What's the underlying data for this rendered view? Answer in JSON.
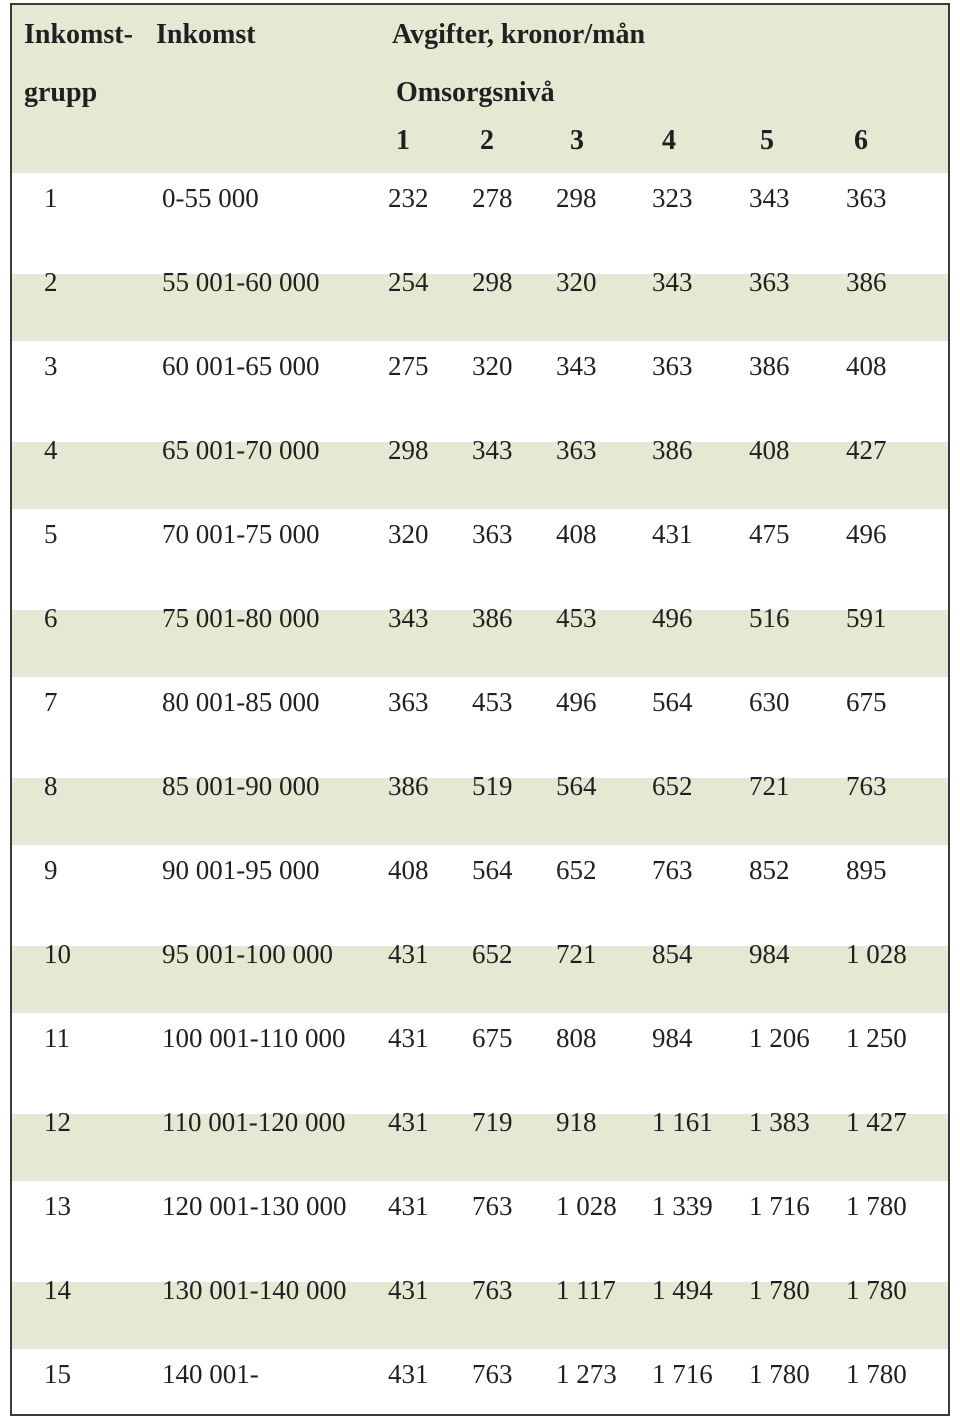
{
  "header": {
    "group_line1": "Inkomst-",
    "group_line2": "grupp",
    "income": "Inkomst",
    "fees": "Avgifter, kronor/mån",
    "care_level": "Omsorgsnivå",
    "levels": [
      "1",
      "2",
      "3",
      "4",
      "5",
      "6"
    ]
  },
  "rows": [
    {
      "group": "1",
      "income": "0-55 000",
      "fees": [
        "232",
        "278",
        "298",
        "323",
        "343",
        "363"
      ]
    },
    {
      "group": "2",
      "income": "55 001-60 000",
      "fees": [
        "254",
        "298",
        "320",
        "343",
        "363",
        "386"
      ]
    },
    {
      "group": "3",
      "income": "60 001-65 000",
      "fees": [
        "275",
        "320",
        "343",
        "363",
        "386",
        "408"
      ]
    },
    {
      "group": "4",
      "income": "65 001-70 000",
      "fees": [
        "298",
        "343",
        "363",
        "386",
        "408",
        "427"
      ]
    },
    {
      "group": "5",
      "income": "70 001-75 000",
      "fees": [
        "320",
        "363",
        "408",
        "431",
        "475",
        "496"
      ]
    },
    {
      "group": "6",
      "income": "75 001-80 000",
      "fees": [
        "343",
        "386",
        "453",
        "496",
        "516",
        "591"
      ]
    },
    {
      "group": "7",
      "income": "80 001-85 000",
      "fees": [
        "363",
        "453",
        "496",
        "564",
        "630",
        "675"
      ]
    },
    {
      "group": "8",
      "income": "85 001-90 000",
      "fees": [
        "386",
        "519",
        "564",
        "652",
        "721",
        "763"
      ]
    },
    {
      "group": "9",
      "income": "90 001-95 000",
      "fees": [
        "408",
        "564",
        "652",
        "763",
        "852",
        "895"
      ]
    },
    {
      "group": "10",
      "income": "95 001-100 000",
      "fees": [
        "431",
        "652",
        "721",
        "854",
        "984",
        "1 028"
      ]
    },
    {
      "group": "11",
      "income": "100 001-110 000",
      "fees": [
        "431",
        "675",
        "808",
        "984",
        "1 206",
        "1 250"
      ]
    },
    {
      "group": "12",
      "income": "110 001-120 000",
      "fees": [
        "431",
        "719",
        "918",
        "1 161",
        "1 383",
        "1 427"
      ]
    },
    {
      "group": "13",
      "income": "120 001-130 000",
      "fees": [
        "431",
        "763",
        "1 028",
        "1 339",
        "1 716",
        "1 780"
      ]
    },
    {
      "group": "14",
      "income": "130 001-140 000",
      "fees": [
        "431",
        "763",
        "1 117",
        "1 494",
        "1 780",
        "1 780"
      ]
    },
    {
      "group": "15",
      "income": "140 001-",
      "fees": [
        "431",
        "763",
        "1 273",
        "1 716",
        "1 780",
        "1 780"
      ]
    }
  ],
  "colors": {
    "row_shade": "#e3e9d2",
    "border": "#3a3a3a",
    "text": "#231f20"
  }
}
